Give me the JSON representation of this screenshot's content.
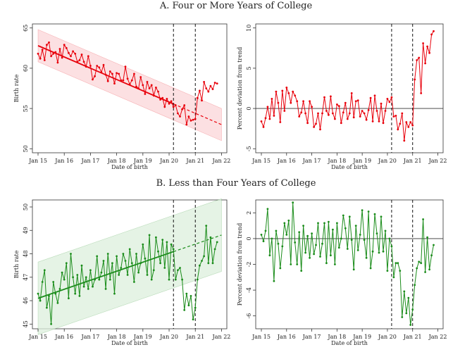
{
  "panels": {
    "a_title": "A. Four or More Years of College",
    "b_title": "B. Less than Four Years of College"
  },
  "colors": {
    "red": "#e8000b",
    "red_band": "#fbd5d8",
    "green": "#1a8c1a",
    "green_band": "#dcefdc"
  },
  "chart_data": [
    {
      "id": "a-left",
      "type": "line",
      "xlabel": "Date of birth",
      "ylabel": "Birth rate",
      "x_ticks": [
        "Jan 15",
        "Jan 16",
        "Jan 17",
        "Jan 18",
        "Jan 19",
        "Jan 20",
        "Jan 21",
        "Jan 22"
      ],
      "y_ticks": [
        50,
        55,
        60,
        65
      ],
      "ylim": [
        49.5,
        65.5
      ],
      "xlim": [
        0,
        84.5
      ],
      "vlines": [
        62,
        72
      ],
      "series_values": [
        61.8,
        61.2,
        62.3,
        61.0,
        62.9,
        63.2,
        61.5,
        61.8,
        62.0,
        60.7,
        62.4,
        61.3,
        62.9,
        62.5,
        61.9,
        61.5,
        62.1,
        61.8,
        60.8,
        61.0,
        61.7,
        60.8,
        60.2,
        61.5,
        60.3,
        58.6,
        59.0,
        60.3,
        60.1,
        59.5,
        60.4,
        59.2,
        58.4,
        59.6,
        59.3,
        58.1,
        59.4,
        59.3,
        58.5,
        58.5,
        60.2,
        58.7,
        58.0,
        58.5,
        59.3,
        57.7,
        57.5,
        58.9,
        57.9,
        56.8,
        58.3,
        57.5,
        57.9,
        56.6,
        57.6,
        57.1,
        56.1,
        56.3,
        55.2,
        56.2,
        55.6,
        55.9,
        55.2,
        55.4,
        54.4,
        54.0,
        54.9,
        55.4,
        53.0,
        54.0,
        53.5,
        53.6,
        53.7,
        56.3,
        57.2,
        56.0,
        58.3,
        57.5,
        57.1,
        57.8,
        57.4,
        58.2,
        58.1
      ],
      "trend": {
        "x0": 0,
        "y0": 62.8,
        "x1": 84,
        "y1": 53.0,
        "split": 62,
        "band": 2.0
      }
    },
    {
      "id": "a-right",
      "type": "line",
      "xlabel": "Date of birth",
      "ylabel": "Percent deviation from trend",
      "x_ticks": [
        "Jan 15",
        "Jan 16",
        "Jan 17",
        "Jan 18",
        "Jan 19",
        "Jan 20",
        "Jan 21",
        "Jan 22"
      ],
      "y_ticks": [
        -5,
        0,
        5,
        10
      ],
      "ylim": [
        -5.5,
        10.5
      ],
      "xlim": [
        0,
        84.5
      ],
      "vlines": [
        62,
        72
      ],
      "zero_line": 0,
      "series_values": [
        -1.6,
        -2.3,
        -1.2,
        0.2,
        -1.3,
        1.2,
        -0.9,
        2.1,
        0.7,
        -1.7,
        2.2,
        -0.3,
        2.6,
        1.9,
        0.7,
        2.1,
        1.6,
        0.9,
        -1.0,
        -0.5,
        0.9,
        -0.6,
        -1.8,
        0.9,
        0.2,
        -2.3,
        -1.9,
        -0.6,
        -2.6,
        -0.6,
        1.4,
        -0.3,
        -0.8,
        1.5,
        -0.6,
        -1.3,
        0.5,
        0.3,
        -1.8,
        -0.5,
        0.7,
        -1.3,
        -0.6,
        1.9,
        -1.1,
        0.9,
        1.0,
        -1.0,
        -0.3,
        -0.6,
        -1.4,
        -0.2,
        1.3,
        -1.6,
        1.6,
        -0.3,
        -1.6,
        0.6,
        -1.8,
        -0.3,
        1.2,
        0.8,
        1.4,
        -1.0,
        -0.9,
        -2.6,
        -1.9,
        -0.6,
        -4.0,
        -1.7,
        -2.3,
        -1.7,
        -2.1,
        3.6,
        6.0,
        6.3,
        1.9,
        8.1,
        5.6,
        7.7,
        6.9,
        9.2,
        9.6
      ],
      "trend": null
    },
    {
      "id": "b-left",
      "type": "line",
      "xlabel": "Date of birth",
      "ylabel": "Birth rate",
      "x_ticks": [
        "Jan 15",
        "Jan 16",
        "Jan 17",
        "Jan 18",
        "Jan 19",
        "Jan 20",
        "Jan 21",
        "Jan 22"
      ],
      "y_ticks": [
        45,
        46,
        47,
        48,
        49,
        50
      ],
      "ylim": [
        44.8,
        50.3
      ],
      "xlim": [
        0,
        84.5
      ],
      "vlines": [
        62,
        72
      ],
      "series_values": [
        46.3,
        46.0,
        46.8,
        47.3,
        45.7,
        46.2,
        45.0,
        46.8,
        46.3,
        45.9,
        46.5,
        47.2,
        46.9,
        47.6,
        46.1,
        48.0,
        47.0,
        46.3,
        47.1,
        46.2,
        47.5,
        46.6,
        47.0,
        46.5,
        47.3,
        46.6,
        46.9,
        47.9,
        46.9,
        47.2,
        47.7,
        46.5,
        48.0,
        46.9,
        47.6,
        46.3,
        47.9,
        47.1,
        47.4,
        48.0,
        47.7,
        47.1,
        48.2,
        47.6,
        46.8,
        48.0,
        47.2,
        47.6,
        48.4,
        47.8,
        47.1,
        48.8,
        46.9,
        47.3,
        48.7,
        48.1,
        47.6,
        48.6,
        47.4,
        48.5,
        46.9,
        48.4,
        48.2,
        46.9,
        47.3,
        47.4,
        46.9,
        45.6,
        46.3,
        45.8,
        46.2,
        45.2,
        45.7,
        46.9,
        47.5,
        47.7,
        47.9,
        49.2,
        47.6,
        48.7,
        47.6,
        48.2,
        48.5
      ],
      "trend": {
        "x0": 0,
        "y0": 46.1,
        "x1": 84,
        "y1": 48.8,
        "split": 62,
        "band": 1.55
      }
    },
    {
      "id": "b-right",
      "type": "line",
      "xlabel": "Date of birth",
      "ylabel": "Percent deviation from trend",
      "x_ticks": [
        "Jan 15",
        "Jan 16",
        "Jan 17",
        "Jan 18",
        "Jan 19",
        "Jan 20",
        "Jan 21",
        "Jan 22"
      ],
      "y_ticks": [
        -6,
        -4,
        -2,
        0,
        2
      ],
      "ylim": [
        -7.0,
        3.0
      ],
      "xlim": [
        0,
        84.5
      ],
      "vlines": [
        62,
        72
      ],
      "zero_line": 0,
      "series_values": [
        0.3,
        -0.2,
        0.6,
        2.3,
        -1.3,
        0.0,
        -3.3,
        0.6,
        -0.4,
        -2.3,
        -0.6,
        1.2,
        0.3,
        1.4,
        -2.0,
        2.8,
        -0.3,
        -2.0,
        0.5,
        -2.5,
        1.0,
        -1.1,
        0.2,
        -1.5,
        0.4,
        -1.2,
        -0.5,
        1.2,
        -1.4,
        -0.4,
        1.2,
        -1.9,
        1.3,
        -1.3,
        0.7,
        -2.0,
        1.2,
        -0.7,
        0.0,
        1.8,
        0.8,
        -0.8,
        1.7,
        -0.1,
        -2.4,
        1.0,
        -0.9,
        0.3,
        2.2,
        -0.1,
        -1.5,
        2.1,
        -2.3,
        -1.0,
        1.9,
        0.4,
        -1.1,
        1.7,
        -1.0,
        0.6,
        -2.5,
        0.0,
        -0.6,
        -3.0,
        -1.9,
        -1.9,
        -2.5,
        -6.1,
        -4.1,
        -5.8,
        -4.6,
        -6.7,
        -5.5,
        -3.6,
        -2.3,
        -1.8,
        -1.9,
        1.5,
        -2.6,
        0.1,
        -2.4,
        -1.3,
        -0.5
      ],
      "trend": null
    }
  ]
}
